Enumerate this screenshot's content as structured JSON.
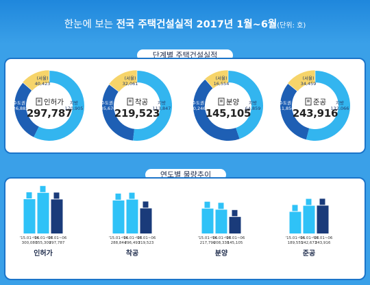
{
  "title": {
    "prefix": "한눈에 보는",
    "main": "전국 주택건설실적 2017년 1월~6월",
    "unit": "(단위: 호)"
  },
  "sections": {
    "stage": "단계별 주택건설실적",
    "trend": "연도별 물량추이"
  },
  "chart_data": [
    {
      "type": "pie",
      "title": "단계별 주택건설실적",
      "charts": [
        {
          "name": "인허가",
          "total": "297,787",
          "slices": [
            {
              "label": "수도권",
              "value": 126882,
              "display": "126,882"
            },
            {
              "label": "(서울)",
              "value": 40423,
              "display": "40,423"
            },
            {
              "label": "지방",
              "value": 170905,
              "display": "170,905"
            }
          ]
        },
        {
          "name": "착공",
          "total": "219,523",
          "slices": [
            {
              "label": "수도권",
              "value": 105676,
              "display": "105,676"
            },
            {
              "label": "(서울)",
              "value": 32061,
              "display": "32,061"
            },
            {
              "label": "지방",
              "value": 113847,
              "display": "113,847"
            }
          ]
        },
        {
          "name": "분양",
          "total": "145,105",
          "slices": [
            {
              "label": "수도권",
              "value": 80246,
              "display": "80,246"
            },
            {
              "label": "(서울)",
              "value": 16554,
              "display": "16,554"
            },
            {
              "label": "지방",
              "value": 64859,
              "display": "64,859"
            }
          ]
        },
        {
          "name": "준공",
          "total": "243,916",
          "slices": [
            {
              "label": "수도권",
              "value": 111850,
              "display": "111,850"
            },
            {
              "label": "(서울)",
              "value": 34459,
              "display": "34,459"
            },
            {
              "label": "지방",
              "value": 132066,
              "display": "132,066"
            }
          ]
        }
      ]
    },
    {
      "type": "bar",
      "title": "연도별 물량추이",
      "categories": [
        "'15.01~06",
        "'16.01~06",
        "'17.01~06"
      ],
      "groups": [
        {
          "name": "인허가",
          "values": [
            300080,
            355309,
            297787
          ],
          "labels": [
            "300,080",
            "355,309",
            "297,787"
          ]
        },
        {
          "name": "착공",
          "values": [
            288844,
            296493,
            219523
          ],
          "labels": [
            "288,844",
            "296,493",
            "219,523"
          ]
        },
        {
          "name": "분양",
          "values": [
            217796,
            208338,
            145105
          ],
          "labels": [
            "217,796",
            "208,338",
            "145,105"
          ]
        },
        {
          "name": "준공",
          "values": [
            189555,
            242673,
            243916
          ],
          "labels": [
            "189,555",
            "242,673",
            "243,916"
          ]
        }
      ]
    }
  ],
  "colors": {
    "metro": "#1e5fb4",
    "seoul": "#f6d46a",
    "local": "#33b5ef",
    "bar_light": "#2fc2f7",
    "bar_dark": "#1a3b7a"
  }
}
